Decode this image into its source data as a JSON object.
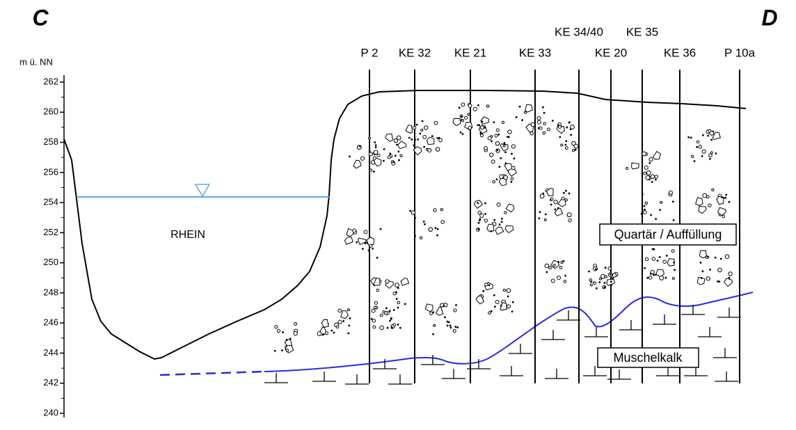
{
  "corners": {
    "left": "C",
    "right": "D"
  },
  "axis": {
    "label": "m ü. NN",
    "ticks": [
      240,
      242,
      244,
      246,
      248,
      250,
      252,
      254,
      256,
      258,
      260,
      262
    ]
  },
  "boreholes": [
    {
      "label": "P 2"
    },
    {
      "label": "KE 32"
    },
    {
      "label": "KE 21"
    },
    {
      "label": "KE 33"
    },
    {
      "label": "KE 34/40"
    },
    {
      "label": "KE 20"
    },
    {
      "label": "KE 35"
    },
    {
      "label": "KE 36"
    },
    {
      "label": "P 10a"
    }
  ],
  "labels": {
    "river": "RHEIN",
    "upper_layer": "Quartär / Auffüllung",
    "lower_layer": "Muschelkalk"
  }
}
